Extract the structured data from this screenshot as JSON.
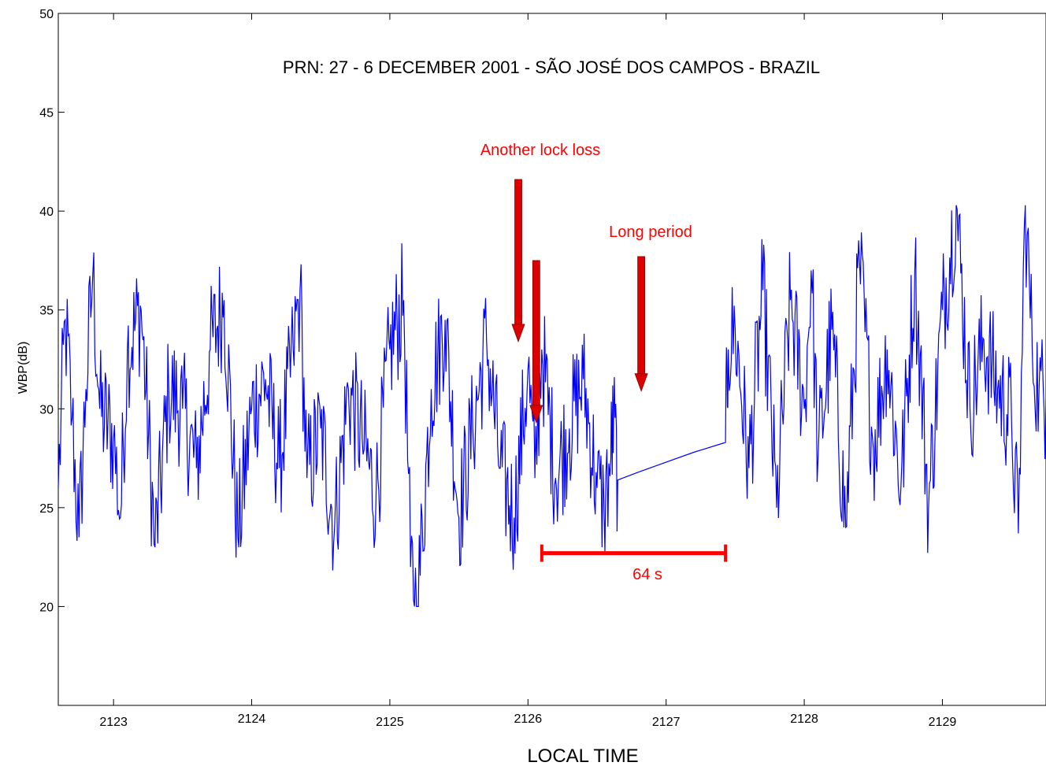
{
  "chart_data": {
    "type": "line",
    "title": "PRN: 27 - 6 DECEMBER 2001 - SÃO JOSÉ DOS CAMPOS - BRAZIL",
    "xlabel": "LOCAL TIME",
    "ylabel": "WBP(dB)",
    "xlim": [
      2122.6,
      2129.75
    ],
    "ylim": [
      15,
      50
    ],
    "x_ticks": [
      "2123",
      "2124",
      "2125",
      "2126",
      "2127",
      "2128",
      "2129"
    ],
    "y_ticks": [
      "20",
      "25",
      "30",
      "35",
      "40",
      "45",
      "50"
    ],
    "grid": false,
    "series": [
      {
        "color": "#0000ff",
        "note_points": "dense noisy record; key points listed",
        "points": [
          [
            2122.6,
            26.0
          ],
          [
            2122.65,
            34.5
          ],
          [
            2122.7,
            29.5
          ],
          [
            2122.75,
            23.5
          ],
          [
            2122.8,
            31.0
          ],
          [
            2122.85,
            36.8
          ],
          [
            2122.9,
            30.0
          ],
          [
            2123.0,
            28.5
          ],
          [
            2123.05,
            24.5
          ],
          [
            2123.1,
            33.0
          ],
          [
            2123.2,
            35.0
          ],
          [
            2123.3,
            23.0
          ],
          [
            2123.4,
            31.0
          ],
          [
            2123.5,
            30.0
          ],
          [
            2123.6,
            27.0
          ],
          [
            2123.7,
            33.0
          ],
          [
            2123.8,
            35.5
          ],
          [
            2123.9,
            23.5
          ],
          [
            2124.0,
            30.0
          ],
          [
            2124.1,
            31.5
          ],
          [
            2124.2,
            27.0
          ],
          [
            2124.3,
            33.0
          ],
          [
            2124.35,
            36.0
          ],
          [
            2124.4,
            26.5
          ],
          [
            2124.5,
            29.0
          ],
          [
            2124.6,
            24.0
          ],
          [
            2124.7,
            31.0
          ],
          [
            2124.8,
            28.5
          ],
          [
            2124.9,
            25.5
          ],
          [
            2125.0,
            33.0
          ],
          [
            2125.1,
            35.5
          ],
          [
            2125.15,
            22.0
          ],
          [
            2125.2,
            19.9
          ],
          [
            2125.3,
            31.0
          ],
          [
            2125.4,
            34.5
          ],
          [
            2125.5,
            24.5
          ],
          [
            2125.6,
            29.0
          ],
          [
            2125.7,
            33.5
          ],
          [
            2125.8,
            27.0
          ],
          [
            2125.9,
            24.5
          ],
          [
            2126.0,
            32.0
          ],
          [
            2126.05,
            26.5
          ],
          [
            2126.1,
            33.0
          ],
          [
            2126.2,
            26.5
          ],
          [
            2126.3,
            29.0
          ],
          [
            2126.4,
            31.5
          ],
          [
            2126.5,
            26.0
          ],
          [
            2126.55,
            25.0
          ],
          [
            2126.6,
            27.5
          ],
          [
            2126.62,
            29.5
          ],
          [
            2126.65,
            26.4
          ],
          [
            2126.8,
            26.8
          ],
          [
            2127.0,
            27.3
          ],
          [
            2127.2,
            27.8
          ],
          [
            2127.43,
            28.3
          ],
          [
            2127.45,
            33.0
          ],
          [
            2127.5,
            34.0
          ],
          [
            2127.6,
            27.0
          ],
          [
            2127.7,
            36.0
          ],
          [
            2127.8,
            25.0
          ],
          [
            2127.9,
            35.5
          ],
          [
            2128.0,
            30.0
          ],
          [
            2128.05,
            37.0
          ],
          [
            2128.1,
            27.5
          ],
          [
            2128.2,
            34.0
          ],
          [
            2128.3,
            24.0
          ],
          [
            2128.4,
            37.5
          ],
          [
            2128.5,
            28.0
          ],
          [
            2128.6,
            33.0
          ],
          [
            2128.7,
            26.0
          ],
          [
            2128.8,
            37.0
          ],
          [
            2128.9,
            25.0
          ],
          [
            2129.0,
            35.0
          ],
          [
            2129.1,
            40.3
          ],
          [
            2129.2,
            30.0
          ],
          [
            2129.3,
            33.5
          ],
          [
            2129.4,
            31.0
          ],
          [
            2129.5,
            29.5
          ],
          [
            2129.55,
            23.7
          ],
          [
            2129.6,
            40.3
          ],
          [
            2129.65,
            33.0
          ],
          [
            2129.7,
            31.0
          ],
          [
            2129.75,
            30.5
          ]
        ]
      }
    ],
    "annotations": [
      {
        "text": "Another lock loss",
        "color": "#ff0000"
      },
      {
        "text": "Long period",
        "color": "#ff0000"
      },
      {
        "text": "64 s",
        "color": "#ff0000",
        "span_x": [
          2126.1,
          2127.43
        ],
        "y": 22.7
      }
    ],
    "arrows": [
      {
        "x": 2125.93,
        "y_from": 41.6,
        "y_to": 33.4,
        "color": "#dd0000"
      },
      {
        "x": 2126.06,
        "y_from": 37.5,
        "y_to": 29.3,
        "color": "#dd0000"
      },
      {
        "x": 2126.82,
        "y_from": 37.7,
        "y_to": 30.9,
        "color": "#dd0000"
      }
    ]
  }
}
